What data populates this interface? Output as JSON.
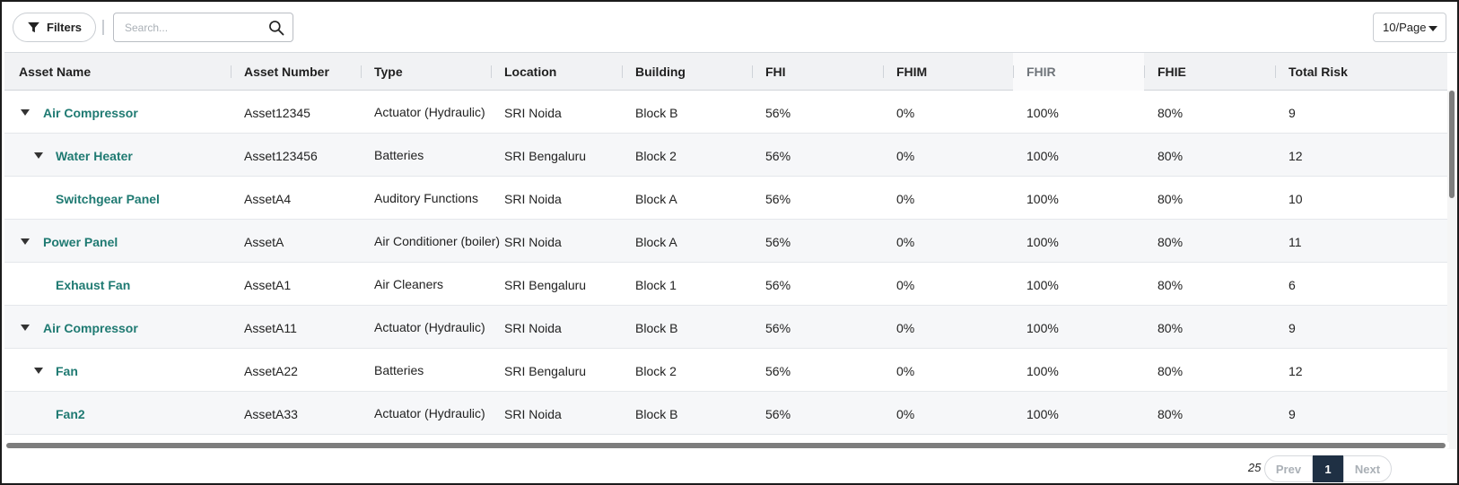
{
  "toolbar": {
    "filters_label": "Filters",
    "search_placeholder": "Search...",
    "search_value": "",
    "per_page": "10/Page",
    "icons": {
      "filter": "filter-funnel-icon",
      "search": "search-icon",
      "per_page_caret": "caret-down-icon"
    }
  },
  "table": {
    "columns": [
      {
        "label": "Asset Name"
      },
      {
        "label": "Asset Number"
      },
      {
        "label": "Type"
      },
      {
        "label": "Location"
      },
      {
        "label": "Building"
      },
      {
        "label": "FHI"
      },
      {
        "label": "FHIM"
      },
      {
        "label": "FHIR"
      },
      {
        "label": "FHIE"
      },
      {
        "label": "Total Risk"
      }
    ],
    "rows": [
      {
        "level": 0,
        "expandable": true,
        "name": "Air Compressor",
        "number": "Asset12345",
        "type": "Actuator (Hydraulic)",
        "location": "SRI Noida",
        "building": "Block B",
        "fhi": "56%",
        "fhim": "0%",
        "fhir": "100%",
        "fhie": "80%",
        "risk": "9"
      },
      {
        "level": 1,
        "expandable": true,
        "name": "Water Heater",
        "number": "Asset123456",
        "type": "Batteries",
        "location": "SRI Bengaluru",
        "building": "Block 2",
        "fhi": "56%",
        "fhim": "0%",
        "fhir": "100%",
        "fhie": "80%",
        "risk": "12"
      },
      {
        "level": 2,
        "expandable": false,
        "name": "Switchgear Panel",
        "number": "AssetA4",
        "type": "Auditory Functions",
        "location": "SRI Noida",
        "building": "Block A",
        "fhi": "56%",
        "fhim": "0%",
        "fhir": "100%",
        "fhie": "80%",
        "risk": "10"
      },
      {
        "level": 0,
        "expandable": true,
        "name": "Power Panel",
        "number": "AssetA",
        "type": "Air Conditioner (boiler)",
        "location": "SRI Noida",
        "building": "Block A",
        "fhi": "56%",
        "fhim": "0%",
        "fhir": "100%",
        "fhie": "80%",
        "risk": "11"
      },
      {
        "level": 1,
        "expandable": false,
        "name": "Exhaust Fan",
        "number": "AssetA1",
        "type": "Air Cleaners",
        "location": "SRI Bengaluru",
        "building": "Block 1",
        "fhi": "56%",
        "fhim": "0%",
        "fhir": "100%",
        "fhie": "80%",
        "risk": "6"
      },
      {
        "level": 0,
        "expandable": true,
        "name": "Air Compressor",
        "number": "AssetA11",
        "type": "Actuator (Hydraulic)",
        "location": "SRI Noida",
        "building": "Block B",
        "fhi": "56%",
        "fhim": "0%",
        "fhir": "100%",
        "fhie": "80%",
        "risk": "9"
      },
      {
        "level": 1,
        "expandable": true,
        "name": "Fan",
        "number": "AssetA22",
        "type": "Batteries",
        "location": "SRI Bengaluru",
        "building": "Block 2",
        "fhi": "56%",
        "fhim": "0%",
        "fhir": "100%",
        "fhie": "80%",
        "risk": "12"
      },
      {
        "level": 2,
        "expandable": false,
        "name": "Fan2",
        "number": "AssetA33",
        "type": "Actuator (Hydraulic)",
        "location": "SRI Noida",
        "building": "Block B",
        "fhi": "56%",
        "fhim": "0%",
        "fhir": "100%",
        "fhie": "80%",
        "risk": "9"
      }
    ]
  },
  "footer": {
    "entries": "25 entries",
    "prev": "Prev",
    "current_page": "1",
    "next": "Next"
  },
  "colors": {
    "asset_link": "#1f7a72",
    "active_page_bg": "#1f3044",
    "header_bg": "#f1f2f4",
    "row_alt_bg": "#f6f7f9"
  }
}
